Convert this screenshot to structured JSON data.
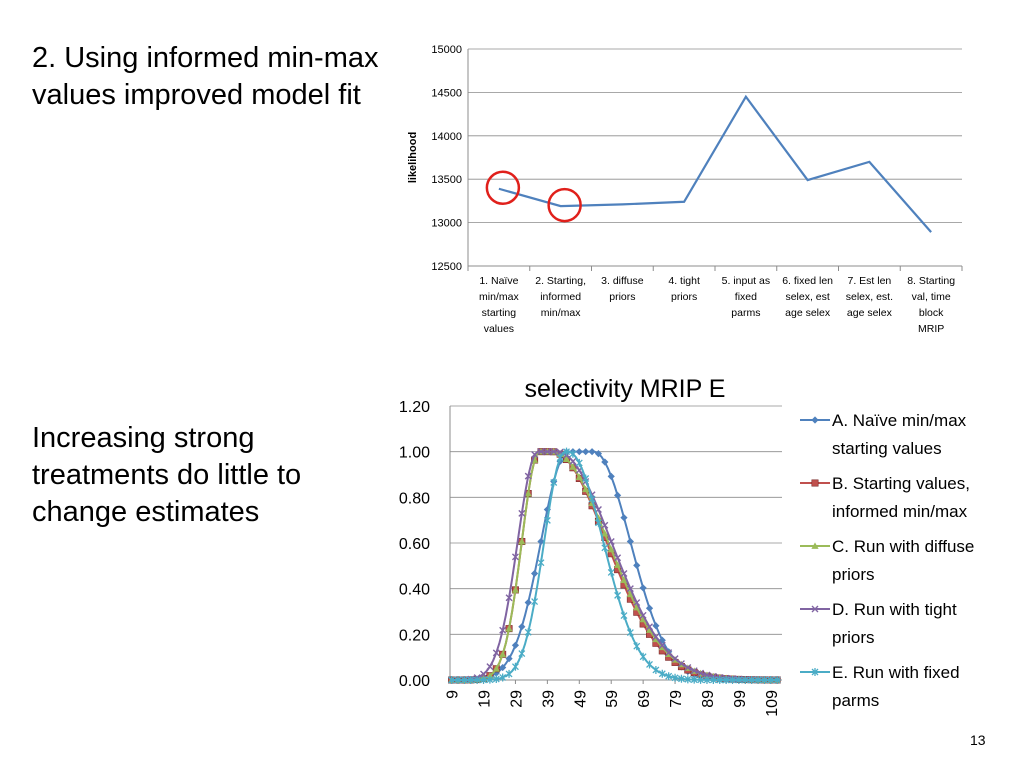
{
  "slide": {
    "text_top": "2. Using informed min-max values improved model fit",
    "text_bottom": "Increasing strong treatments do little to change estimates",
    "page_number": "13"
  },
  "chart_data": [
    {
      "type": "line",
      "title": "",
      "xlabel": "",
      "ylabel": "likelihood",
      "ylim": [
        12500,
        15000
      ],
      "yticks": [
        "15000",
        "14500",
        "14000",
        "13500",
        "13000",
        "12500"
      ],
      "grid": true,
      "legend": "none",
      "color": "#4F81BD",
      "highlight_color": "#E0201B",
      "categories": [
        [
          "1. Naïve",
          "min/max",
          "starting",
          "values"
        ],
        [
          "2. Starting,",
          "informed",
          "min/max"
        ],
        [
          "3. diffuse",
          "priors"
        ],
        [
          "4.  tight",
          "priors"
        ],
        [
          "5. input as",
          "fixed",
          "parms"
        ],
        [
          "6. fixed len",
          "selex, est",
          "age selex"
        ],
        [
          "7. Est len",
          "selex, est.",
          "age selex"
        ],
        [
          "8. Starting",
          "val, time",
          "block",
          "MRIP"
        ]
      ],
      "values": [
        13390,
        13190,
        13210,
        13240,
        14450,
        13490,
        13700,
        12890
      ],
      "highlighted_indices": [
        0,
        1
      ]
    },
    {
      "type": "line",
      "title": "selectivity MRIP E",
      "xlabel": "",
      "ylabel": "",
      "ylim": [
        0,
        1.2
      ],
      "yticks": [
        "1.20",
        "1.00",
        "0.80",
        "0.60",
        "0.40",
        "0.20",
        "0.00"
      ],
      "x_first": 9,
      "x_last": 112,
      "x_tick_labels": [
        "9",
        "19",
        "29",
        "39",
        "49",
        "59",
        "69",
        "79",
        "89",
        "99",
        "109"
      ],
      "grid": true,
      "legend": "right",
      "series": [
        {
          "name": "A. Naïve min/max starting values",
          "legend_lines": [
            "A. Naïve min/max",
            "starting values"
          ],
          "color": "#4F81BD",
          "marker": "diamond",
          "peak": 49.5,
          "sd_left": 8.5,
          "sd_right": 11.5,
          "plateau": 8
        },
        {
          "name": "B. Starting values, informed min/max",
          "legend_lines": [
            "B. Starting values,",
            "informed min/max"
          ],
          "color": "#C0504D",
          "marker": "square",
          "peak": 38.5,
          "sd_left": 5.5,
          "sd_right": 17,
          "plateau": 4
        },
        {
          "name": "C. Run with diffuse priors",
          "legend_lines": [
            "C. Run with diffuse",
            "priors"
          ],
          "color": "#9BBB59",
          "marker": "triangle",
          "peak": 38.5,
          "sd_left": 5.5,
          "sd_right": 17.5,
          "plateau": 4
        },
        {
          "name": "D. Run with tight priors",
          "legend_lines": [
            "D. Run with tight",
            "priors"
          ],
          "color": "#8064A2",
          "marker": "x",
          "peak": 39,
          "sd_left": 6.3,
          "sd_right": 17,
          "plateau": 6
        },
        {
          "name": "E. Run with fixed parms",
          "legend_lines": [
            "E. Run with fixed",
            "parms"
          ],
          "color": "#4BACC6",
          "marker": "star",
          "peak": 45,
          "sd_left": 6.5,
          "sd_right": 11,
          "plateau": 1
        }
      ]
    }
  ]
}
